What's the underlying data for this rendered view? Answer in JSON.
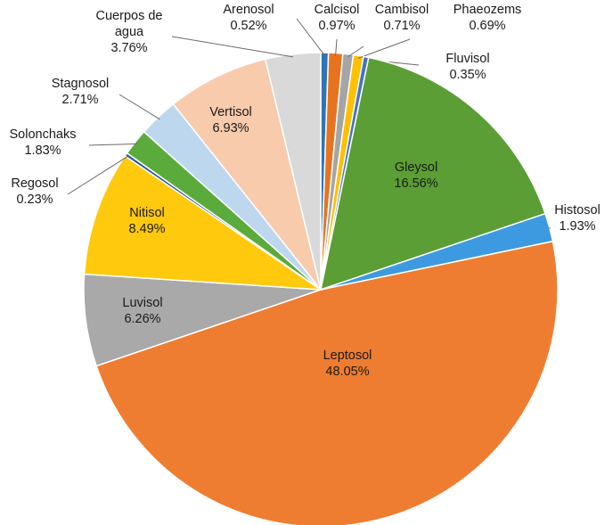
{
  "chart_data": {
    "type": "pie",
    "title": "",
    "legend": "none",
    "slices": [
      {
        "name": "Arenosol",
        "value": 0.52,
        "label": "0.52%",
        "color": "#2e75b6"
      },
      {
        "name": "Calcisol",
        "value": 0.97,
        "label": "0.97%",
        "color": "#e8731f"
      },
      {
        "name": "Cambisol",
        "value": 0.71,
        "label": "0.71%",
        "color": "#a5a5a5"
      },
      {
        "name": "Phaeozems",
        "value": 0.69,
        "label": "0.69%",
        "color": "#ffc000"
      },
      {
        "name": "Fluvisol",
        "value": 0.35,
        "label": "0.35%",
        "color": "#4472c4"
      },
      {
        "name": "Gleysol",
        "value": 16.56,
        "label": "16.56%",
        "color": "#5b9e35"
      },
      {
        "name": "Histosol",
        "value": 1.93,
        "label": "1.93%",
        "color": "#3d9ae0"
      },
      {
        "name": "Leptosol",
        "value": 48.05,
        "label": "48.05%",
        "color": "#ee7d31"
      },
      {
        "name": "Luvisol",
        "value": 6.26,
        "label": "6.26%",
        "color": "#a9a9a9"
      },
      {
        "name": "Nitisol",
        "value": 8.49,
        "label": "8.49%",
        "color": "#ffc90e"
      },
      {
        "name": "Regosol",
        "value": 0.23,
        "label": "0.23%",
        "color": "#2f5597"
      },
      {
        "name": "Solonchaks",
        "value": 1.83,
        "label": "1.83%",
        "color": "#5bab3c"
      },
      {
        "name": "Stagnosol",
        "value": 2.71,
        "label": "2.71%",
        "color": "#bdd7ee"
      },
      {
        "name": "Vertisol",
        "value": 6.93,
        "label": "6.93%",
        "color": "#f8cbad"
      },
      {
        "name": "Cuerpos de agua",
        "value": 3.76,
        "label": "3.76%",
        "color": "#d9d9d9"
      }
    ]
  }
}
